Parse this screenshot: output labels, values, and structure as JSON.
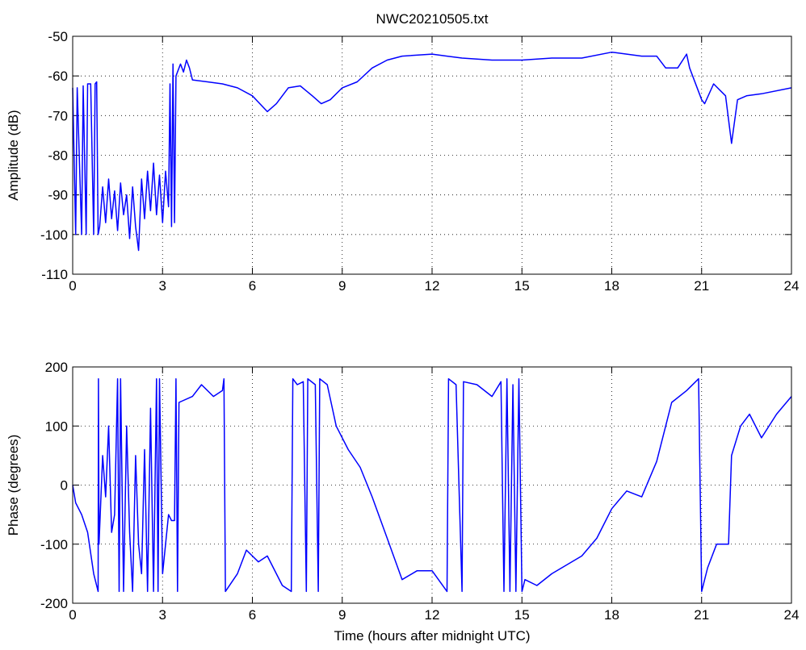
{
  "chart_data": [
    {
      "type": "line",
      "title": "NWC20210505.txt",
      "ylabel": "Amplitude (dB)",
      "grid": true,
      "xlim": [
        0,
        24
      ],
      "xticks": [
        0,
        3,
        6,
        9,
        12,
        15,
        18,
        21,
        24
      ],
      "ylim": [
        -110,
        -50
      ],
      "yticks": [
        -110,
        -100,
        -90,
        -80,
        -70,
        -60,
        -50
      ],
      "x": [
        0,
        0.1,
        0.15,
        0.3,
        0.35,
        0.45,
        0.5,
        0.6,
        0.7,
        0.75,
        0.8,
        0.85,
        0.9,
        1.0,
        1.1,
        1.2,
        1.3,
        1.4,
        1.5,
        1.6,
        1.7,
        1.8,
        1.9,
        2.0,
        2.1,
        2.2,
        2.3,
        2.4,
        2.5,
        2.6,
        2.7,
        2.8,
        2.9,
        3.0,
        3.1,
        3.2,
        3.25,
        3.3,
        3.35,
        3.4,
        3.45,
        3.6,
        3.7,
        3.8,
        3.9,
        4.0,
        4.5,
        5.0,
        5.5,
        6.0,
        6.5,
        6.8,
        7.2,
        7.6,
        8.0,
        8.3,
        8.6,
        9.0,
        9.5,
        10.0,
        10.5,
        11.0,
        12.0,
        12.5,
        13.0,
        14.0,
        15.0,
        16.0,
        17.0,
        18.0,
        18.5,
        19.0,
        19.5,
        19.8,
        20.2,
        20.5,
        20.6,
        21.0,
        21.1,
        21.4,
        21.8,
        22.0,
        22.2,
        22.5,
        23.0,
        24.0
      ],
      "series": [
        {
          "color": "#0000ff",
          "values": [
            -63,
            -100,
            -63,
            -100,
            -62.5,
            -100,
            -62,
            -62,
            -100,
            -62,
            -61.5,
            -100,
            -98,
            -88,
            -97,
            -86,
            -96,
            -89,
            -99,
            -87,
            -95,
            -90,
            -101,
            -88,
            -98,
            -104,
            -86,
            -96,
            -84,
            -94,
            -82,
            -95,
            -85,
            -97,
            -84,
            -93,
            -62,
            -98,
            -57,
            -97,
            -60,
            -57,
            -59,
            -56,
            -58,
            -61,
            -61.5,
            -62,
            -63,
            -65,
            -69,
            -67,
            -63,
            -62.5,
            -65,
            -67,
            -66,
            -63,
            -61.5,
            -58,
            -56,
            -55,
            -54.5,
            -55,
            -55.5,
            -56,
            -56,
            -55.5,
            -55.5,
            -54,
            -54.5,
            -55,
            -55,
            -58,
            -58,
            -54.5,
            -58,
            -66,
            -67,
            -62,
            -65,
            -77,
            -66,
            -65,
            -64.5,
            -63
          ]
        }
      ]
    },
    {
      "type": "line",
      "ylabel": "Phase (degrees)",
      "xlabel": "Time (hours after midnight UTC)",
      "grid": true,
      "xlim": [
        0,
        24
      ],
      "xticks": [
        0,
        3,
        6,
        9,
        12,
        15,
        18,
        21,
        24
      ],
      "ylim": [
        -200,
        200
      ],
      "yticks": [
        -200,
        -100,
        0,
        100,
        200
      ],
      "x": [
        0,
        0.1,
        0.3,
        0.5,
        0.7,
        0.85,
        0.86,
        0.88,
        1.0,
        1.1,
        1.2,
        1.3,
        1.4,
        1.5,
        1.55,
        1.6,
        1.7,
        1.8,
        1.9,
        2.0,
        2.1,
        2.2,
        2.3,
        2.4,
        2.5,
        2.6,
        2.7,
        2.8,
        2.85,
        2.9,
        3.0,
        3.1,
        3.2,
        3.3,
        3.4,
        3.45,
        3.5,
        3.55,
        4.0,
        4.3,
        4.7,
        5.0,
        5.05,
        5.1,
        5.5,
        5.8,
        6.2,
        6.5,
        7.0,
        7.3,
        7.35,
        7.5,
        7.7,
        7.8,
        7.85,
        8.1,
        8.2,
        8.25,
        8.5,
        8.8,
        9.2,
        9.6,
        10.0,
        10.5,
        11.0,
        11.5,
        12.0,
        12.5,
        12.55,
        12.8,
        13.0,
        13.05,
        13.5,
        14.0,
        14.3,
        14.4,
        14.5,
        14.6,
        14.7,
        14.8,
        14.9,
        15.0,
        15.1,
        15.5,
        16.0,
        17.0,
        17.5,
        18.0,
        18.5,
        19.0,
        19.5,
        20.0,
        20.5,
        20.9,
        21.0,
        21.2,
        21.5,
        21.9,
        22.0,
        22.3,
        22.6,
        23.0,
        23.5,
        24.0
      ],
      "series": [
        {
          "color": "#0000ff",
          "values": [
            0,
            -30,
            -50,
            -80,
            -150,
            -180,
            180,
            -100,
            50,
            -20,
            100,
            -80,
            -50,
            180,
            -180,
            180,
            -180,
            100,
            -80,
            -180,
            50,
            -100,
            -150,
            60,
            -180,
            130,
            -180,
            180,
            -180,
            180,
            -150,
            -100,
            -50,
            -60,
            -60,
            180,
            -180,
            140,
            150,
            170,
            150,
            160,
            180,
            -180,
            -150,
            -110,
            -130,
            -120,
            -170,
            -180,
            180,
            170,
            175,
            -180,
            180,
            170,
            -180,
            180,
            170,
            100,
            60,
            30,
            -20,
            -90,
            -160,
            -145,
            -145,
            -180,
            180,
            170,
            -180,
            175,
            170,
            150,
            175,
            -180,
            180,
            -180,
            170,
            -180,
            180,
            -180,
            -160,
            -170,
            -150,
            -120,
            -90,
            -40,
            -10,
            -20,
            40,
            140,
            160,
            180,
            -180,
            -140,
            -100,
            -100,
            50,
            100,
            120,
            80,
            120,
            150
          ]
        }
      ]
    }
  ]
}
